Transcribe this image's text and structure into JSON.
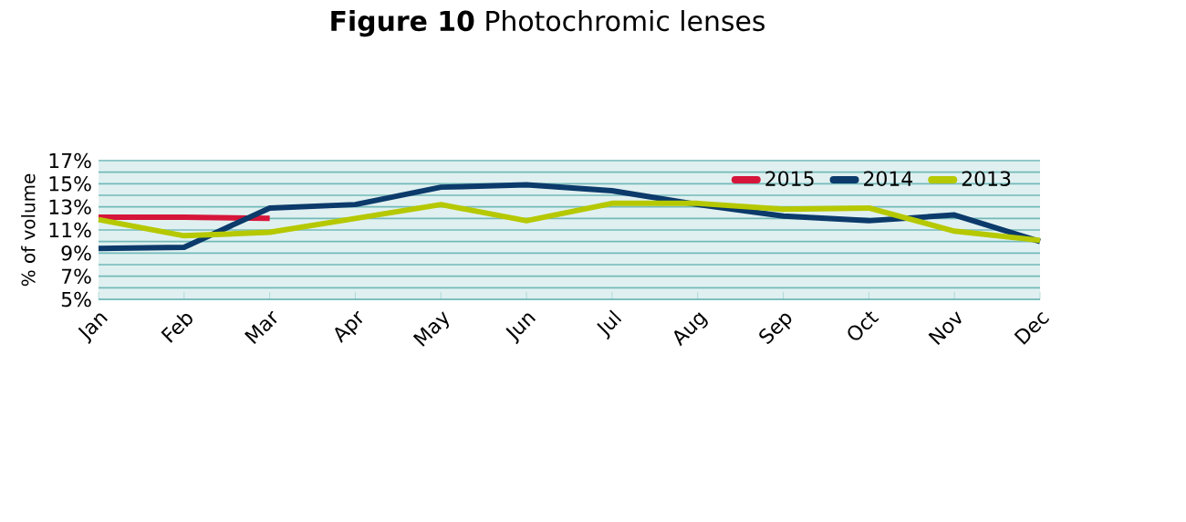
{
  "chart_data": {
    "type": "line",
    "title": "**Figure 10** Photochromic lenses",
    "ylabel": "% of volume",
    "categories": [
      "Jan",
      "Feb",
      "Mar",
      "Apr",
      "May",
      "Jun",
      "Jul",
      "Aug",
      "Sep",
      "Oct",
      "Nov",
      "Dec"
    ],
    "series": [
      {
        "name": "2015",
        "color": "#d6153a",
        "values": [
          12.1,
          12.1,
          12.0,
          null,
          null,
          null,
          null,
          null,
          null,
          null,
          null,
          null
        ]
      },
      {
        "name": "2014",
        "color": "#0b3a6b",
        "values": [
          9.4,
          9.5,
          12.9,
          13.2,
          14.7,
          14.9,
          14.4,
          13.2,
          12.2,
          11.8,
          12.3,
          10.0
        ]
      },
      {
        "name": "2013",
        "color": "#b5c800",
        "values": [
          11.9,
          10.5,
          10.8,
          12.0,
          13.2,
          11.8,
          13.3,
          13.3,
          12.8,
          12.9,
          10.9,
          10.1
        ]
      }
    ],
    "ylim": [
      5,
      17
    ],
    "yticks": [
      {
        "value": 5,
        "label": "5%"
      },
      {
        "value": 6,
        "label": null
      },
      {
        "value": 7,
        "label": "7%"
      },
      {
        "value": 8,
        "label": null
      },
      {
        "value": 9,
        "label": "9%"
      },
      {
        "value": 10,
        "label": null
      },
      {
        "value": 11,
        "label": "11%"
      },
      {
        "value": 12,
        "label": null
      },
      {
        "value": 13,
        "label": "13%"
      },
      {
        "value": 14,
        "label": null
      },
      {
        "value": 15,
        "label": "15%"
      },
      {
        "value": 16,
        "label": null
      },
      {
        "value": 17,
        "label": "17%"
      }
    ],
    "grid": "y",
    "legend": "top right",
    "marker": "none",
    "line_style": "solid"
  }
}
